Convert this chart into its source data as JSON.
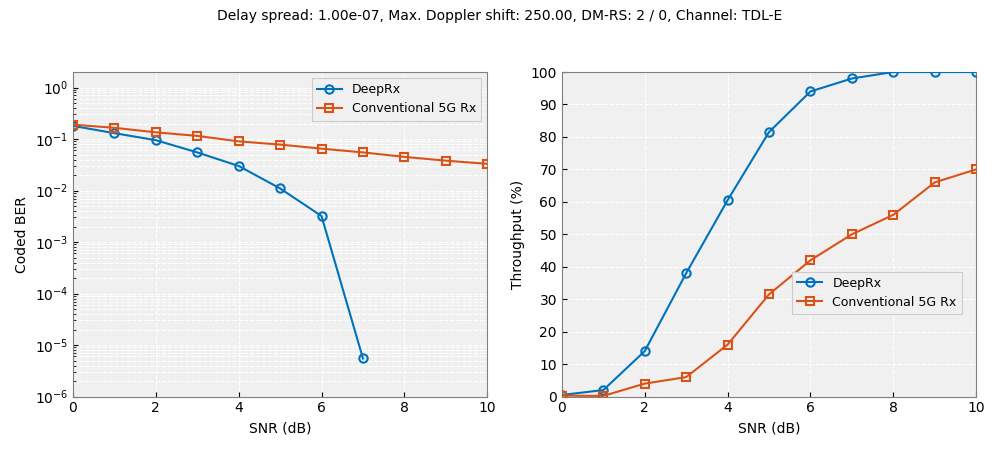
{
  "title": "Delay spread: 1.00e-07, Max. Doppler shift: 250.00, DM-RS: 2 / 0, Channel: TDL-E",
  "ber_snr_deep": [
    0,
    1,
    2,
    3,
    4,
    5,
    6,
    7
  ],
  "deeprx_ber": [
    0.18,
    0.13,
    0.095,
    0.055,
    0.03,
    0.011,
    0.0032,
    5.5e-06
  ],
  "ber_snr_conv": [
    0,
    1,
    2,
    3,
    4,
    5,
    6,
    7,
    8,
    9,
    10
  ],
  "conv_ber": [
    0.19,
    0.165,
    0.135,
    0.115,
    0.09,
    0.078,
    0.065,
    0.055,
    0.045,
    0.038,
    0.033
  ],
  "tput_snr": [
    0,
    1,
    2,
    3,
    4,
    5,
    6,
    7,
    8,
    9,
    10
  ],
  "deeprx_tput": [
    0.5,
    2.0,
    14.0,
    38.0,
    60.5,
    81.5,
    94.0,
    98.0,
    100.0,
    100.0,
    100.0
  ],
  "conv_tput": [
    0.3,
    0.2,
    4.0,
    6.0,
    16.0,
    31.5,
    42.0,
    50.0,
    56.0,
    66.0,
    70.0
  ],
  "deeprx_color": "#0072BD",
  "conv_color": "#D95319",
  "axes_bg_color": "#F0F0F0",
  "grid_color": "#FFFFFF",
  "xlabel": "SNR (dB)",
  "ylabel_ber": "Coded BER",
  "ylabel_tput": "Throughput (%)",
  "ber_ylim_low": 1e-06,
  "ber_ylim_high": 2.0,
  "tput_ylim": [
    0,
    100
  ],
  "xlim": [
    0,
    10
  ],
  "ber_xticks": [
    0,
    2,
    4,
    6,
    8,
    10
  ],
  "tput_xticks": [
    0,
    2,
    4,
    6,
    8,
    10
  ],
  "tput_yticks": [
    0,
    10,
    20,
    30,
    40,
    50,
    60,
    70,
    80,
    90,
    100
  ],
  "title_fontsize": 10,
  "axis_fontsize": 10,
  "legend_fontsize": 9,
  "linewidth": 1.5,
  "markersize": 6,
  "markeredgewidth": 1.5
}
